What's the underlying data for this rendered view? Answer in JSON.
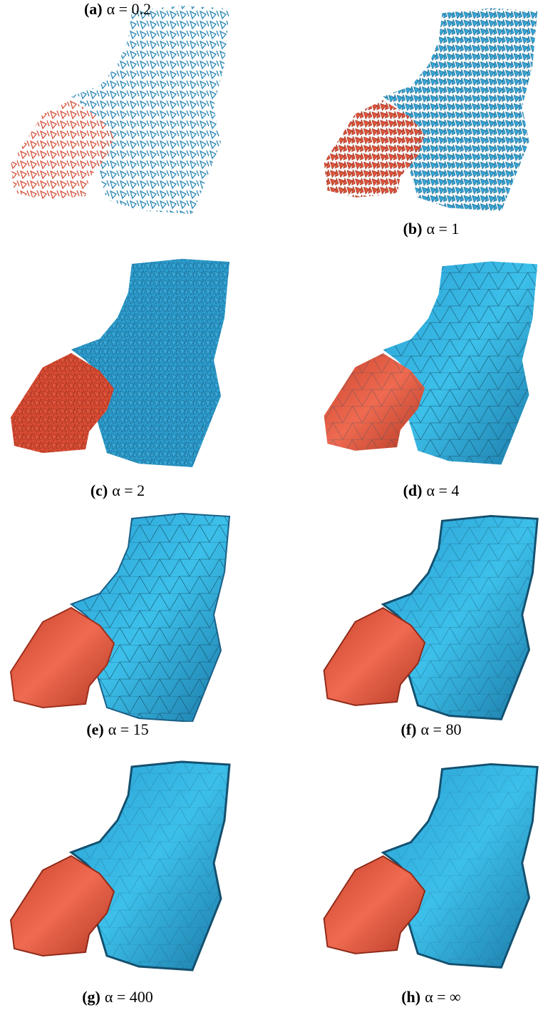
{
  "panels": [
    {
      "tag": "(a)",
      "caption": "α = 0.2"
    },
    {
      "tag": "(b)",
      "caption": "α = 1"
    },
    {
      "tag": "(c)",
      "caption": "α = 2"
    },
    {
      "tag": "(d)",
      "caption": "α = 4"
    },
    {
      "tag": "(e)",
      "caption": "α = 15"
    },
    {
      "tag": "(f)",
      "caption": "α = 80"
    },
    {
      "tag": "(g)",
      "caption": "α = 400"
    },
    {
      "tag": "(h)",
      "caption": "α = ∞"
    }
  ]
}
